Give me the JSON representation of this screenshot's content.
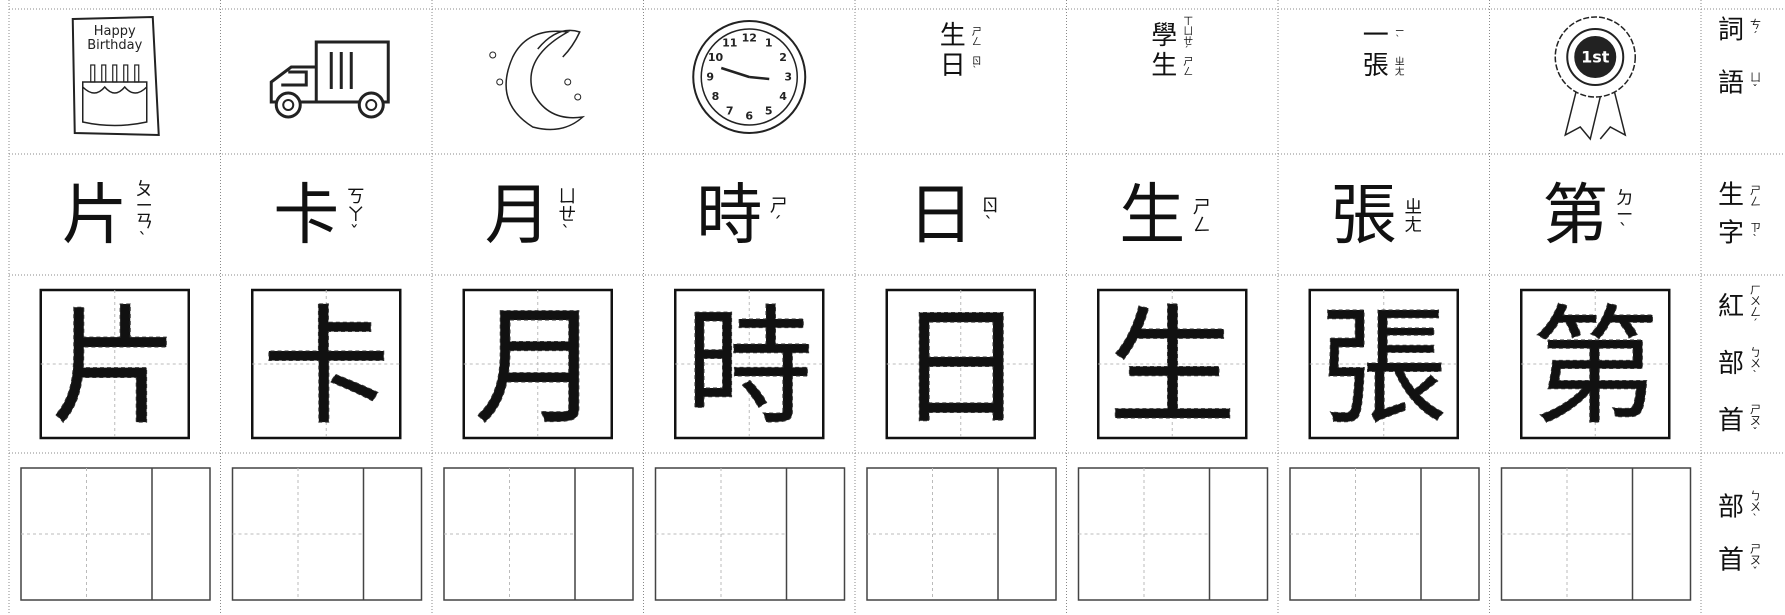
{
  "row_headers": [
    {
      "chars": [
        {
          "char": "詞",
          "zhuyin": "ㄘˊ"
        },
        {
          "char": "語",
          "zhuyin": "ㄩˇ"
        }
      ]
    },
    {
      "chars": [
        {
          "char": "生",
          "zhuyin": "ㄕㄥ"
        },
        {
          "char": "字",
          "zhuyin": "ㄗˋ"
        }
      ]
    },
    {
      "chars": [
        {
          "char": "紅",
          "zhuyin": "ㄏㄨㄥˊ"
        },
        {
          "char": "部",
          "zhuyin": "ㄅㄨˋ"
        },
        {
          "char": "首",
          "zhuyin": "ㄕㄡˇ"
        }
      ]
    },
    {
      "chars": [
        {
          "char": "部",
          "zhuyin": "ㄅㄨˋ"
        },
        {
          "char": "首",
          "zhuyin": "ㄕㄡˇ"
        }
      ]
    }
  ],
  "birthday_card": {
    "text": [
      "Happy",
      "Birthday"
    ]
  },
  "clock": {
    "numbers": [
      "12",
      "1",
      "2",
      "3",
      "4",
      "5",
      "6",
      "7",
      "8",
      "9",
      "10",
      "11"
    ]
  },
  "words": [
    {
      "chars": [
        {
          "char": "生",
          "zhuyin": "ㄕㄥ"
        },
        {
          "char": "日",
          "zhuyin": "ㄖˋ"
        }
      ]
    },
    {
      "chars": [
        {
          "char": "學",
          "zhuyin": "ㄒㄩㄝˊ"
        },
        {
          "char": "生",
          "zhuyin": "ㄕㄥ"
        }
      ]
    },
    {
      "chars": [
        {
          "char": "一",
          "zhuyin": "ㄧˋ"
        },
        {
          "char": "張",
          "zhuyin": "ㄓㄤ"
        }
      ]
    }
  ],
  "ribbon": {
    "text": "1st"
  },
  "characters": [
    {
      "char": "片",
      "zhuyin": "ㄆㄧㄢˋ"
    },
    {
      "char": "卡",
      "zhuyin": "ㄎㄚˇ"
    },
    {
      "char": "月",
      "zhuyin": "ㄩㄝˋ"
    },
    {
      "char": "時",
      "zhuyin": "ㄕˊ"
    },
    {
      "char": "日",
      "zhuyin": "ㄖˋ"
    },
    {
      "char": "生",
      "zhuyin": "ㄕㄥ"
    },
    {
      "char": "張",
      "zhuyin": "ㄓㄤ"
    },
    {
      "char": "第",
      "zhuyin": "ㄉㄧˋ"
    }
  ]
}
